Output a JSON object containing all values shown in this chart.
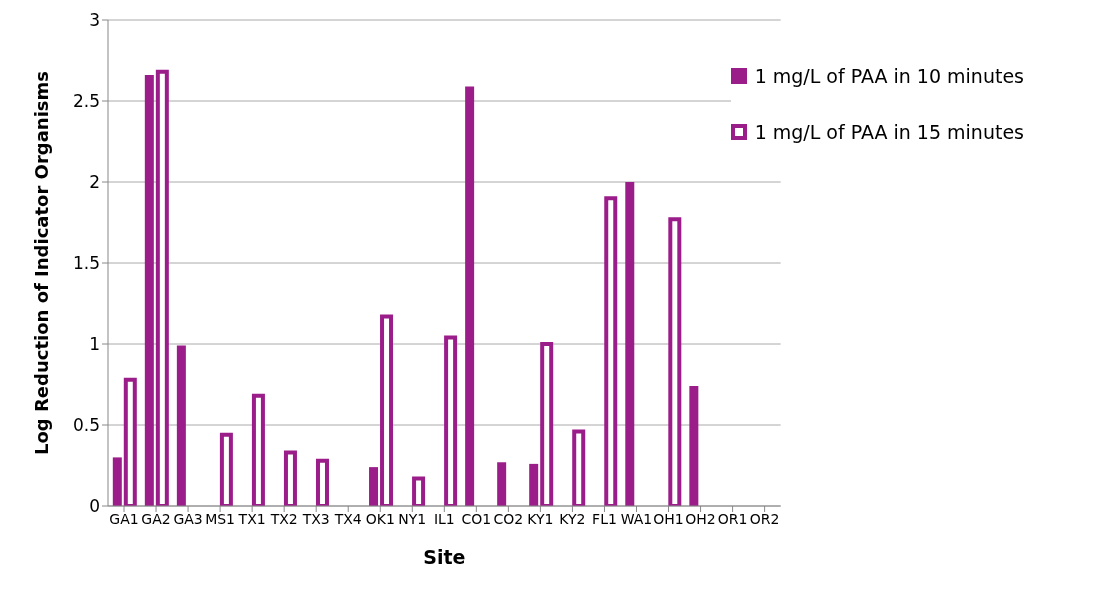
{
  "chart_data": {
    "type": "bar",
    "xlabel": "Site",
    "ylabel": "Log Reduction of Indicator Organisms",
    "categories": [
      "GA1",
      "GA2",
      "GA3",
      "MS1",
      "TX1",
      "TX2",
      "TX3",
      "TX4",
      "OK1",
      "NY1",
      "IL1",
      "CO1",
      "CO2",
      "KY1",
      "KY2",
      "FL1",
      "WA1",
      "OH1",
      "OH2",
      "OR1",
      "OR2"
    ],
    "series": [
      {
        "name": "1 mg/L of PAA in 10 minutes",
        "color": "#9b1d8a",
        "values": [
          0.3,
          2.66,
          0.99,
          null,
          null,
          null,
          null,
          null,
          0.24,
          null,
          null,
          2.59,
          0.27,
          0.26,
          null,
          null,
          2.0,
          null,
          0.74,
          null,
          null
        ]
      },
      {
        "name": "1 mg/L of PAA in 15 minutes",
        "color": "#9b1d8a",
        "values": [
          0.78,
          2.68,
          null,
          0.44,
          0.68,
          0.33,
          0.28,
          null,
          1.17,
          0.17,
          1.04,
          null,
          null,
          1.0,
          0.46,
          1.9,
          null,
          1.77,
          null,
          null,
          null
        ]
      }
    ],
    "ylim": [
      0,
      3
    ],
    "yticks": [
      0,
      0.5,
      1,
      1.5,
      2,
      2.5,
      3
    ],
    "grid": "y",
    "legend": "top right"
  }
}
